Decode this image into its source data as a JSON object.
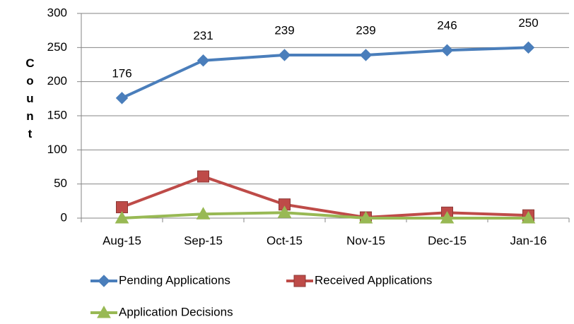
{
  "chart_data": {
    "type": "line",
    "ylabel": "Count",
    "categories": [
      "Aug-15",
      "Sep-15",
      "Oct-15",
      "Nov-15",
      "Dec-15",
      "Jan-16"
    ],
    "series": [
      {
        "name": "Pending Applications",
        "color": "#4a7ebb",
        "marker": "diamond",
        "show_labels": true,
        "values": [
          176,
          231,
          239,
          239,
          246,
          250
        ]
      },
      {
        "name": "Received Applications",
        "color": "#be4b48",
        "marker": "square",
        "show_labels": false,
        "values": [
          16,
          61,
          20,
          1,
          8,
          4
        ]
      },
      {
        "name": "Application Decisions",
        "color": "#98b954",
        "marker": "triangle",
        "show_labels": false,
        "values": [
          0,
          6,
          8,
          0,
          0,
          0
        ]
      }
    ],
    "ylim": [
      0,
      300
    ],
    "yticks": [
      0,
      50,
      100,
      150,
      200,
      250,
      300
    ],
    "grid": true,
    "legend": "bottom"
  }
}
